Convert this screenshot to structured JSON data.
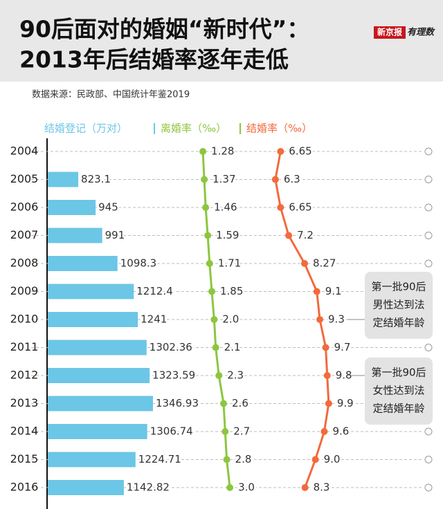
{
  "chart_data": {
    "type": "combo",
    "title": [
      "90后面对的婚姻“新时代”：",
      "2013年后结婚率逐年走低"
    ],
    "brand": [
      "新京报",
      "有理数"
    ],
    "source": "数据来源：民政部、中国统计年鉴2019",
    "categories": [
      "2004",
      "2005",
      "2006",
      "2007",
      "2008",
      "2009",
      "2010",
      "2011",
      "2012",
      "2013",
      "2014",
      "2015",
      "2016"
    ],
    "series": [
      {
        "name": "结婚登记（万对）",
        "color": "#6cc6e6",
        "type": "bar",
        "values": [
          null,
          823.1,
          945,
          991,
          1098.3,
          1212.4,
          1241,
          1302.36,
          1323.59,
          1346.93,
          1306.74,
          1224.71,
          1142.82
        ],
        "value_labels": [
          null,
          "823.1",
          "945",
          "991",
          "1098.3",
          "1212.4",
          "1241",
          "1302.36",
          "1323.59",
          "1346.93",
          "1306.74",
          "1224.71",
          "1142.82"
        ]
      },
      {
        "name": "离婚率（‰）",
        "color": "#8cc63f",
        "type": "line",
        "values": [
          1.28,
          1.37,
          1.46,
          1.59,
          1.71,
          1.85,
          2,
          2.1,
          2.3,
          2.6,
          2.7,
          2.8,
          3
        ],
        "value_labels": [
          "1.28",
          "1.37",
          "1.46",
          "1.59",
          "1.71",
          "1.85",
          "2.0",
          "2.1",
          "2.3",
          "2.6",
          "2.7",
          "2.8",
          "3.0"
        ]
      },
      {
        "name": "结婚率（‰）",
        "color": "#f26a3d",
        "type": "line",
        "values": [
          6.65,
          6.3,
          6.65,
          7.2,
          8.27,
          9.1,
          9.3,
          9.7,
          9.8,
          9.9,
          9.6,
          9,
          8.3
        ],
        "value_labels": [
          "6.65",
          "6.3",
          "6.65",
          "7.2",
          "8.27",
          "9.1",
          "9.3",
          "9.7",
          "9.8",
          "9.9",
          "9.6",
          "9.0",
          "8.3"
        ]
      }
    ],
    "annotations": [
      [
        "第一批90后",
        "男性达到法",
        "定结婚年龄"
      ],
      [
        "第一批90后",
        "女性达到法",
        "定结婚年龄"
      ]
    ]
  }
}
